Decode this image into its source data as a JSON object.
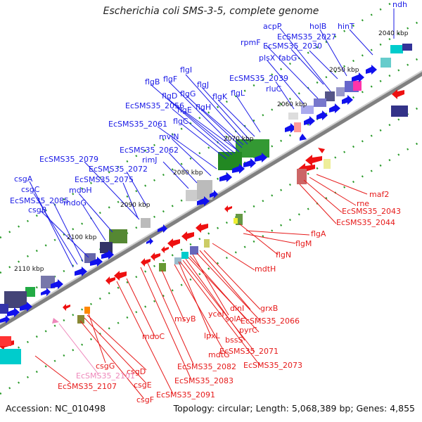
{
  "title": "Escherichia coli SMS-3-5, complete genome",
  "accession": "Accession: NC_010498",
  "summary": "Topology: circular; Length: 5,068,389 bp; Genes: 4,855",
  "colors": {
    "forward_label": "#1a1ae6",
    "reverse_label": "#e61a1a",
    "rna_label": "#ee88bb",
    "forward_arrow": "#1010ee",
    "reverse_arrow": "#ee1010",
    "axis": "#808080",
    "dots": "#2a9a2a"
  },
  "kbp_ticks": [
    "2040 kbp",
    "2050 kbp",
    "2060 kbp",
    "2070 kbp",
    "2080 kbp",
    "2090 kbp",
    "2100 kbp",
    "2110 kbp"
  ],
  "forward_labels": [
    "ndh",
    "hinT",
    "holB",
    "acpP",
    "EcSMS35_2027",
    "rpmF",
    "EcSMS35_2030",
    "fabG",
    "plsX",
    "EcSMS35_2039",
    "rluC",
    "flgI",
    "flgJ",
    "flgK",
    "flgL",
    "flgF",
    "flgG",
    "flgH",
    "flgB",
    "flgD",
    "flgE",
    "EcSMS35_2056",
    "flgC",
    "EcSMS35_2061",
    "mviN",
    "EcSMS35_2062",
    "rimJ",
    "EcSMS35_2079",
    "EcSMS35_2072",
    "EcSMS35_2075",
    "csgA",
    "csgC",
    "mdoH",
    "mdoG",
    "EcSMS35_2085",
    "csgB"
  ],
  "reverse_labels": [
    "maf2",
    "rne",
    "EcSMS35_2043",
    "EcSMS35_2044",
    "flgA",
    "flgM",
    "flgN",
    "mdtH",
    "grxB",
    "dinI",
    "EcSMS35_2066",
    "yceI",
    "solA",
    "pyrC",
    "bssS",
    "EcSMS35_2071",
    "EcSMS35_2073",
    "msyB",
    "lpxL",
    "mdtG",
    "mdoC",
    "EcSMS35_2082",
    "EcSMS35_2083",
    "csgG",
    "csgD",
    "csgE",
    "csgF",
    "EcSMS35_2091",
    "EcSMS35_2107"
  ],
  "rna_labels": [
    "EcSMS35_2101"
  ]
}
